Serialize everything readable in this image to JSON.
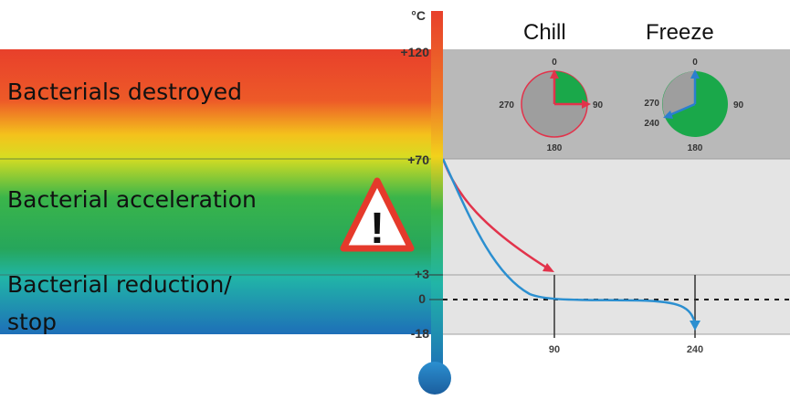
{
  "thermometer": {
    "unit": "°C",
    "ticks": [
      "+120",
      "+70",
      "+3",
      "0",
      "-18"
    ]
  },
  "zones": [
    {
      "label": "Bacterials destroyed"
    },
    {
      "label": "Bacterial acceleration"
    },
    {
      "label": "Bacterial reduction/",
      "label2": "stop"
    }
  ],
  "warning": {
    "icon": "warning-triangle-icon",
    "symbol": "!"
  },
  "dials": [
    {
      "title": "Chill",
      "top": "0",
      "right": "90",
      "bottom": "180",
      "left": "270",
      "extra": "",
      "accent": "#e2334b",
      "fill": "#1aa84a"
    },
    {
      "title": "Freeze",
      "top": "0",
      "right": "90",
      "bottom": "180",
      "left": "270",
      "extra": "240",
      "accent": "#2b7fcf",
      "fill": "#1aa84a"
    }
  ],
  "chart_data": {
    "type": "line",
    "x_ticks": [
      "90",
      "240"
    ],
    "series": [
      {
        "name": "",
        "color": "#e2334b",
        "x": [
          0,
          90
        ],
        "y": [
          70,
          3
        ]
      },
      {
        "name": "",
        "color": "#2b8fd0",
        "x": [
          0,
          90,
          240
        ],
        "y": [
          70,
          0,
          -18
        ]
      }
    ]
  },
  "colors": {
    "hot": "#e8402b",
    "warm": "#f2d21b",
    "mid": "#3ab54a",
    "cool": "#21b5a7",
    "cold": "#1e6fb8",
    "panel_top": "#b9b9b9",
    "panel_bottom": "#e4e4e4"
  }
}
